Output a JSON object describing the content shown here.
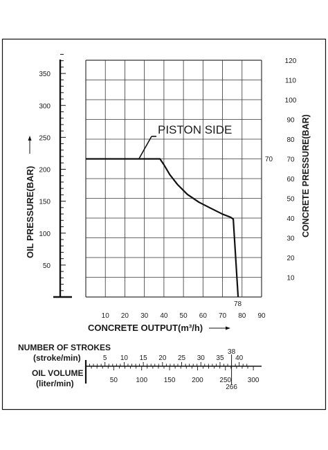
{
  "chart_data": {
    "type": "line",
    "title": "",
    "annotation": "PISTON SIDE",
    "xlabel": "CONCRETE OUTPUT(m³/h)",
    "ylabel_left": "OIL PRESSURE(BAR)",
    "ylabel_right": "CONCRETE PRESSURE(BAR)",
    "xlim": [
      0,
      90
    ],
    "ylim_right": [
      0,
      120
    ],
    "x_ticks": [
      10,
      20,
      30,
      40,
      50,
      60,
      70,
      80,
      90
    ],
    "y_right_ticks": [
      10,
      20,
      30,
      40,
      50,
      60,
      70,
      80,
      90,
      100,
      110,
      120
    ],
    "y_left_ticks": [
      50,
      100,
      150,
      200,
      250,
      300,
      350
    ],
    "grid": true,
    "series": [
      {
        "name": "",
        "x": [
          0,
          27,
          38,
          40,
          43,
          47,
          52,
          58,
          64,
          70,
          74,
          75.5,
          78
        ],
        "y": [
          70,
          70,
          70,
          67,
          62,
          57,
          52,
          48,
          45,
          42,
          40.5,
          39.5,
          0
        ]
      }
    ],
    "marked_values": {
      "right_axis_value": "70",
      "x_axis_value": "78"
    },
    "strokes_scale": {
      "label_line1": "NUMBER OF STROKES",
      "label_line2": "(stroke/min)",
      "ticks": [
        5,
        10,
        15,
        20,
        25,
        30,
        35,
        40
      ],
      "marked": "38",
      "range": [
        0,
        44
      ]
    },
    "oil_volume_scale": {
      "label_line1": "OIL VOLUME",
      "label_line2": "(liter/min)",
      "ticks": [
        50,
        100,
        150,
        200,
        250,
        300
      ],
      "marked": "266",
      "range": [
        0,
        310
      ]
    }
  }
}
